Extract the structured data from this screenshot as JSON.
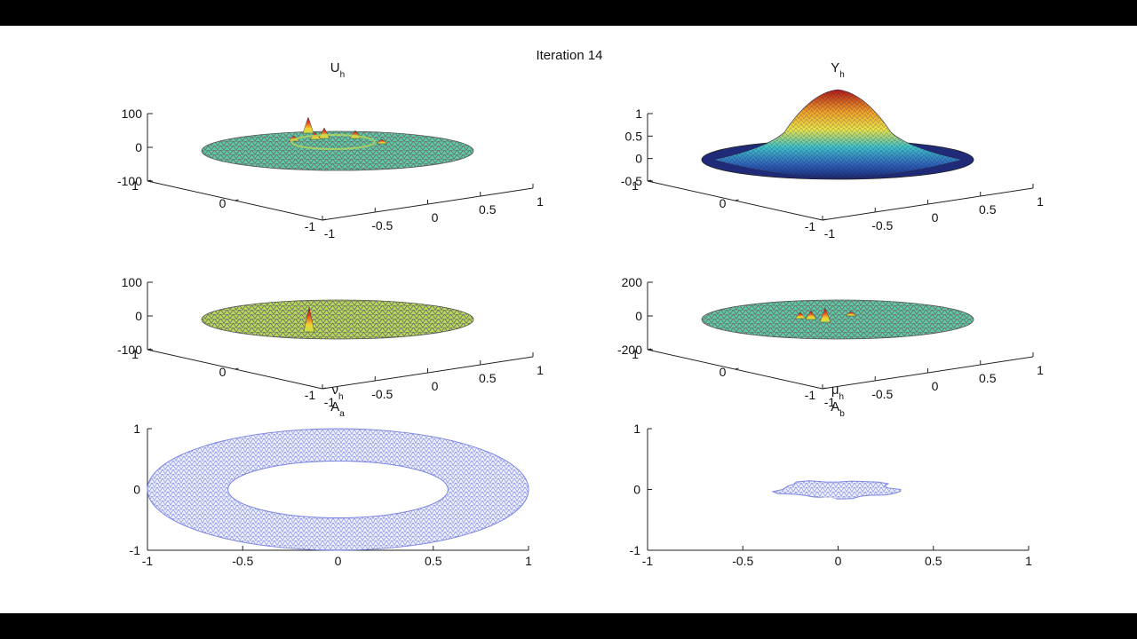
{
  "figure": {
    "title": "Iteration 14"
  },
  "colors": {
    "background": "#ffffff",
    "surface_flat": "#5fc8a4",
    "surface_flat_yellowish": "#b7d85a",
    "mesh_edge": "#6a6a6a",
    "peak_red": "#c81e1e",
    "peak_yellow": "#f2d12e",
    "mesh_2d": "#7b86e0",
    "axis": "#222222"
  },
  "chart_data": [
    {
      "id": "U_h",
      "type": "surface3d",
      "title": "U",
      "title_sub": "h",
      "zlim": [
        -100,
        100
      ],
      "z_ticks": [
        "100",
        "0",
        "-100"
      ],
      "x_ticks": [
        "-1",
        "-0.5",
        "0",
        "0.5",
        "1"
      ],
      "y_ticks": [
        "1",
        "0",
        "-1"
      ],
      "description_values": {
        "base_level": 0,
        "peaks": [
          90,
          60,
          55,
          40,
          30
        ]
      }
    },
    {
      "id": "Y_h",
      "type": "surface3d",
      "title": "Y",
      "title_sub": "h",
      "zlim": [
        -0.5,
        1
      ],
      "z_ticks": [
        "1",
        "0.5",
        "0",
        "-0.5"
      ],
      "x_ticks": [
        "-1",
        "-0.5",
        "0",
        "0.5",
        "1"
      ],
      "y_ticks": [
        "1",
        "0",
        "-1"
      ],
      "description_values": {
        "max": 0.85,
        "min": 0
      }
    },
    {
      "id": "nu_h",
      "type": "surface3d",
      "title": "ν",
      "title_sub": "h",
      "zlim": [
        -100,
        100
      ],
      "z_ticks": [
        "100",
        "0",
        "-100"
      ],
      "x_ticks": [
        "-1",
        "-0.5",
        "0",
        "0.5",
        "1"
      ],
      "y_ticks": [
        "1",
        "0",
        "-1"
      ],
      "description_values": {
        "base_level": 0,
        "peaks": [
          90
        ]
      }
    },
    {
      "id": "mu_h",
      "type": "surface3d",
      "title": "μ",
      "title_sub": "h",
      "zlim": [
        -200,
        200
      ],
      "z_ticks": [
        "200",
        "0",
        "-200"
      ],
      "x_ticks": [
        "-1",
        "-0.5",
        "0",
        "0.5",
        "1"
      ],
      "y_ticks": [
        "1",
        "0",
        "-1"
      ],
      "description_values": {
        "base_level": 0,
        "peaks": [
          150,
          80,
          60
        ]
      }
    },
    {
      "id": "A_a",
      "type": "mesh2d",
      "title": "A",
      "title_sub": "a",
      "xlim": [
        -1,
        1
      ],
      "ylim": [
        -1,
        1
      ],
      "x_ticks": [
        "-1",
        "-0.5",
        "0",
        "0.5",
        "1"
      ],
      "y_ticks": [
        "1",
        "0",
        "-1"
      ],
      "shape": {
        "kind": "annulus",
        "r_outer": 1.0,
        "r_inner": 0.55
      }
    },
    {
      "id": "A_b",
      "type": "mesh2d",
      "title": "A",
      "title_sub": "b",
      "xlim": [
        -1,
        1
      ],
      "ylim": [
        -1,
        1
      ],
      "x_ticks": [
        "-1",
        "-0.5",
        "0",
        "0.5",
        "1"
      ],
      "y_ticks": [
        "1",
        "0",
        "-1"
      ],
      "shape": {
        "kind": "blob",
        "center": [
          0,
          0
        ],
        "rx": 0.31,
        "ry": 0.14
      }
    }
  ]
}
